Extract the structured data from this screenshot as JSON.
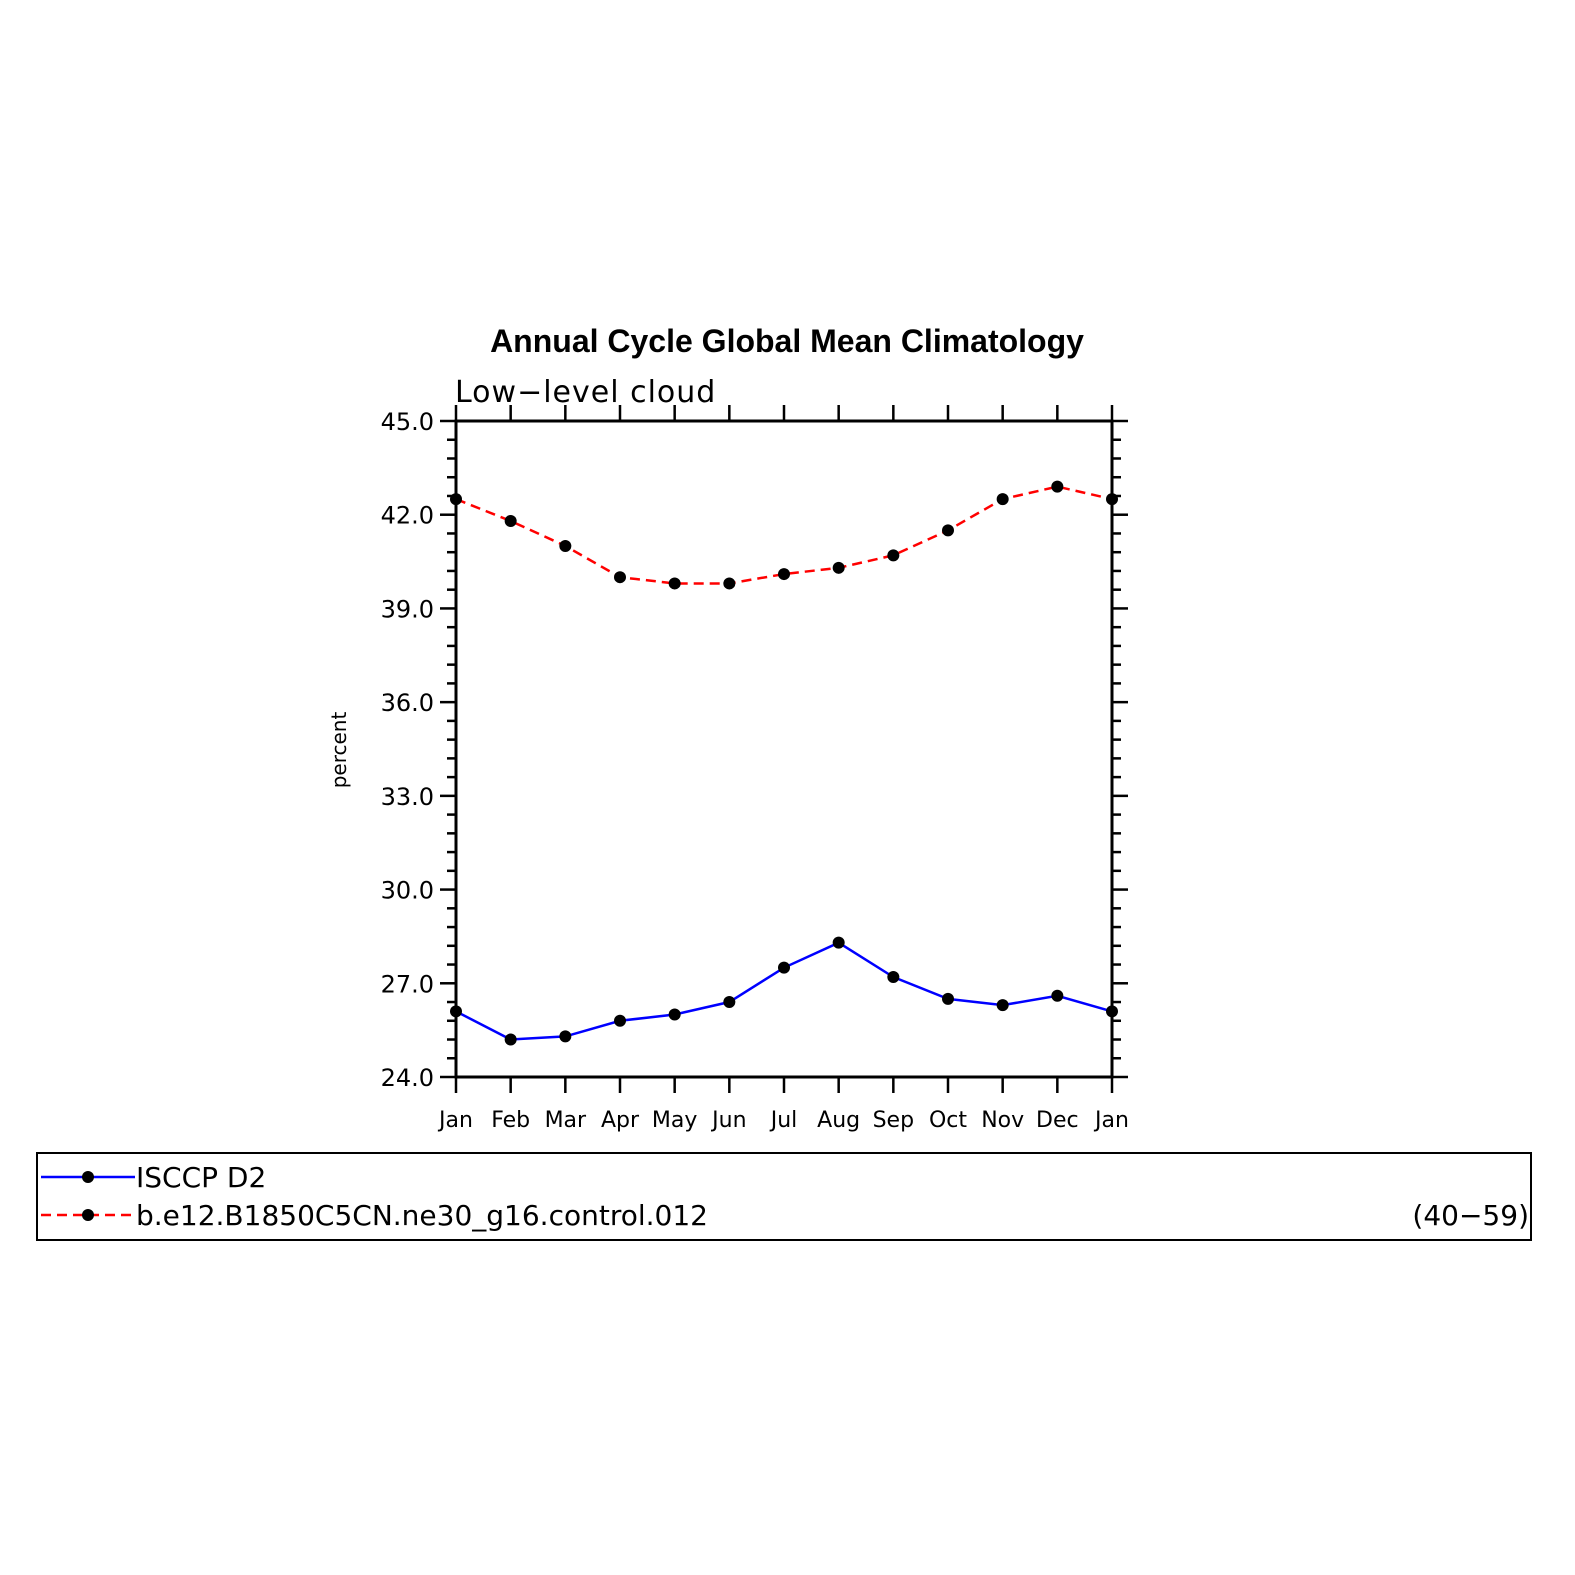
{
  "chart_data": {
    "type": "line",
    "title": "Annual Cycle Global Mean Climatology",
    "subtitle": "Low−level cloud",
    "xlabel": "",
    "ylabel": "percent",
    "categories": [
      "Jan",
      "Feb",
      "Mar",
      "Apr",
      "May",
      "Jun",
      "Jul",
      "Aug",
      "Sep",
      "Oct",
      "Nov",
      "Dec",
      "Jan"
    ],
    "ylim": [
      24.0,
      45.0
    ],
    "yticks": [
      "24.0",
      "27.0",
      "30.0",
      "33.0",
      "36.0",
      "39.0",
      "42.0",
      "45.0"
    ],
    "grid": false,
    "legend_placement": "bottom",
    "series": [
      {
        "name": "ISCCP D2",
        "color": "#0000ff",
        "dash": "solid",
        "values": [
          26.1,
          25.2,
          25.3,
          25.8,
          26.0,
          26.4,
          27.5,
          28.3,
          27.2,
          26.5,
          26.3,
          26.6,
          26.1
        ]
      },
      {
        "name": "b.e12.B1850C5CN.ne30_g16.control.012",
        "color": "#ff0000",
        "dash": "dashed",
        "values": [
          42.5,
          41.8,
          41.0,
          40.0,
          39.8,
          39.8,
          40.1,
          40.3,
          40.7,
          41.5,
          42.5,
          42.9,
          42.5
        ]
      }
    ],
    "legend_note": "(40−59)"
  }
}
